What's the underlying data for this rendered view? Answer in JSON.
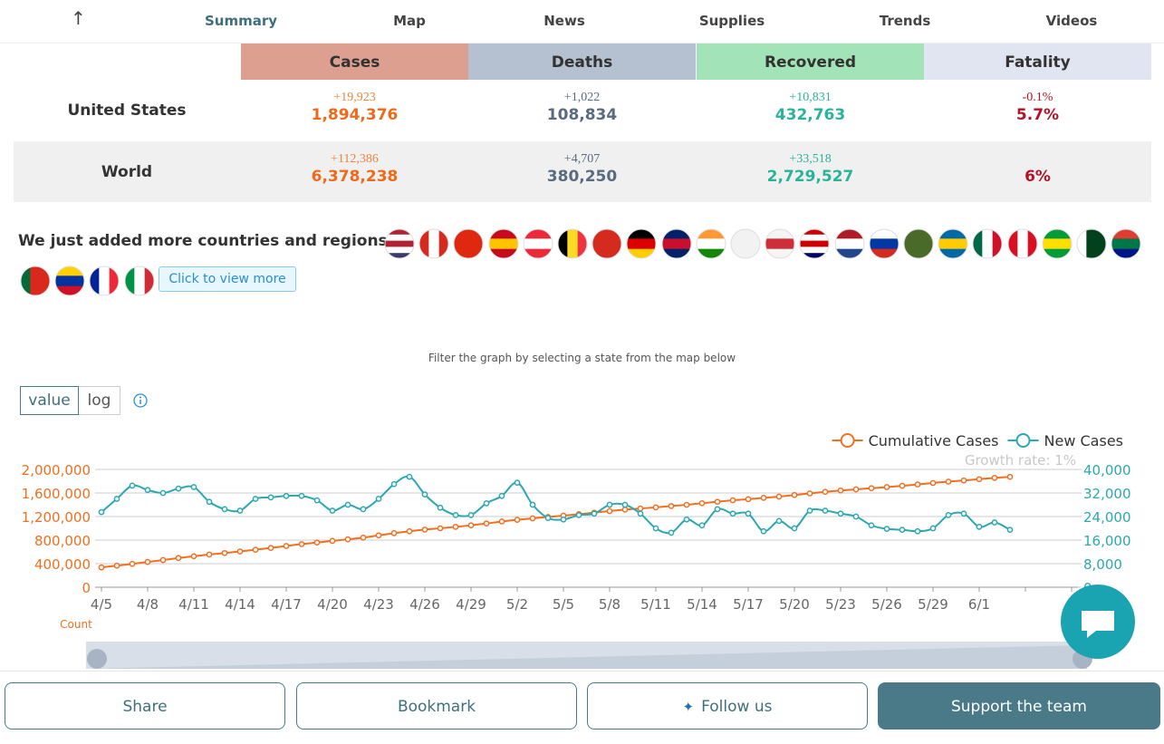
{
  "nav": {
    "tabs": [
      "Summary",
      "Map",
      "News",
      "Supplies",
      "Trends",
      "Videos"
    ]
  },
  "table": {
    "header": [
      "Cases",
      "Deaths",
      "Recovered",
      "Fatality"
    ],
    "rows": [
      {
        "label": "United States",
        "cells": [
          {
            "change": "+19,923",
            "total": "1,894,376"
          },
          {
            "change": "+1,022",
            "total": "108,834"
          },
          {
            "change": "+10,831",
            "total": "432,763"
          },
          {
            "change": "-0.1%",
            "total": "5.7%"
          }
        ]
      },
      {
        "label": "World",
        "cells": [
          {
            "change": "+112,386",
            "total": "6,378,238"
          },
          {
            "change": "+4,707",
            "total": "380,250"
          },
          {
            "change": "+33,518",
            "total": "2,729,527"
          },
          {
            "change": "",
            "total": "6%"
          }
        ]
      }
    ]
  },
  "regions": {
    "message": "We just added more countries and regions!",
    "button": "Click to view more"
  },
  "filter_note": "Filter the graph by selecting a state from the map below",
  "controls": {
    "scale_options": [
      "value",
      "log"
    ]
  },
  "chart_data": {
    "type": "line",
    "log_scale": false,
    "grid": true,
    "legend": "top-right",
    "annotation": "Growth rate: 1%",
    "y_label": "Count",
    "categories": [
      "4/5",
      null,
      null,
      "4/8",
      null,
      null,
      "4/11",
      null,
      null,
      "4/14",
      null,
      null,
      "4/17",
      null,
      null,
      "4/20",
      null,
      null,
      "4/23",
      null,
      null,
      "4/26",
      null,
      null,
      "4/29",
      null,
      null,
      "5/2",
      null,
      null,
      "5/5",
      null,
      null,
      "5/8",
      null,
      null,
      "5/11",
      null,
      null,
      "5/14",
      null,
      null,
      "5/17",
      null,
      null,
      "5/20",
      null,
      null,
      "5/23",
      null,
      null,
      "5/26",
      null,
      null,
      "5/29",
      null,
      null,
      "6/1",
      null,
      null,
      null,
      null,
      null,
      null
    ],
    "ylim": [
      0,
      2000000
    ],
    "yticks": [
      0,
      {
        "value": 400000,
        "label": "400,000"
      },
      {
        "value": 800000,
        "label": "800,000"
      },
      {
        "value": 1200000,
        "label": "1,200,000"
      },
      {
        "value": 1600000,
        "label": "1,600,000"
      },
      {
        "value": 2000000,
        "label": "2,000,000"
      }
    ],
    "y2lim": [
      0,
      40000
    ],
    "y2ticks": [
      0,
      {
        "value": 8000,
        "label": "8,000"
      },
      {
        "value": 16000,
        "label": "16,000"
      },
      {
        "value": 24000,
        "label": "24,000"
      },
      {
        "value": 32000,
        "label": "32,000"
      },
      {
        "value": 40000,
        "label": "40,000"
      }
    ],
    "series": [
      {
        "name": "Cumulative Cases",
        "color": "#f26f21",
        "values": [
          337000,
          366000,
          397000,
          429000,
          462000,
          496000,
          526000,
          555000,
          580000,
          607000,
          636000,
          667000,
          700000,
          732000,
          759000,
          787000,
          813000,
          842000,
          880000,
          917000,
          950000,
          978000,
          1001000,
          1025000,
          1051000,
          1082000,
          1116000,
          1144000,
          1169000,
          1192000,
          1216000,
          1240000,
          1266000,
          1293000,
          1318000,
          1337000,
          1356000,
          1378000,
          1399000,
          1426000,
          1451000,
          1476000,
          1495000,
          1517000,
          1538000,
          1565000,
          1593000,
          1619000,
          1642000,
          1662000,
          1681000,
          1700000,
          1721000,
          1745000,
          1770000,
          1793000,
          1812000,
          1834000,
          1856000,
          1874000,
          null,
          null,
          null,
          null
        ]
      },
      {
        "name": "New Cases",
        "color": "#2ba8b0",
        "axis": "y2",
        "values": [
          25500,
          30000,
          34500,
          33000,
          32000,
          33500,
          34000,
          29000,
          26500,
          26000,
          30000,
          30500,
          31000,
          31000,
          29500,
          26000,
          28000,
          26500,
          30000,
          35000,
          37500,
          31500,
          27000,
          24500,
          24500,
          28500,
          31000,
          35500,
          28000,
          23500,
          23000,
          24500,
          25000,
          28000,
          28000,
          25000,
          20000,
          18500,
          23000,
          21000,
          26500,
          25000,
          25000,
          19000,
          22500,
          20000,
          26000,
          26000,
          25000,
          24000,
          21000,
          19800,
          19500,
          19000,
          20000,
          24500,
          25000,
          20500,
          22000,
          19500,
          null,
          null,
          null,
          null
        ]
      }
    ]
  },
  "buttons": [
    "Share",
    "Bookmark",
    "Follow us",
    "Support the team"
  ]
}
